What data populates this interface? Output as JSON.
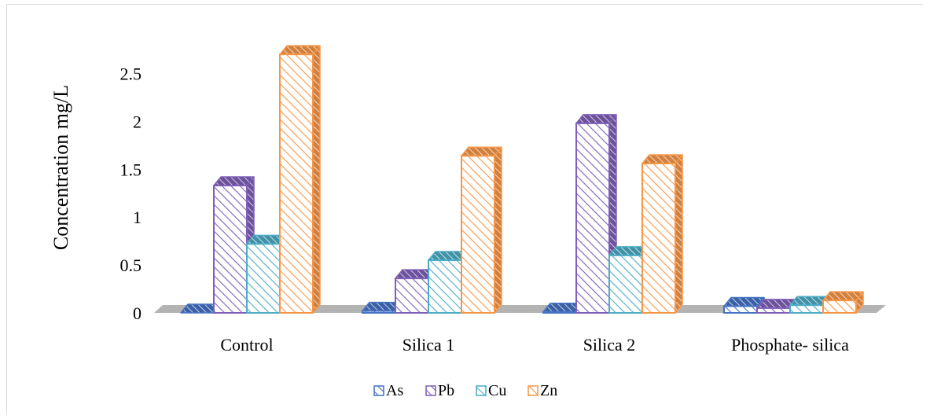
{
  "chart_data": {
    "type": "bar",
    "categories": [
      "Control",
      "Silica 1",
      "Silica 2",
      "Phosphate- silica"
    ],
    "series": [
      {
        "name": "As",
        "values": [
          0.0,
          0.02,
          0.01,
          0.07
        ],
        "color": "#4472c4"
      },
      {
        "name": "Pb",
        "values": [
          1.33,
          0.36,
          1.98,
          0.05
        ],
        "color": "#7f5fb8"
      },
      {
        "name": "Cu",
        "values": [
          0.72,
          0.55,
          0.6,
          0.08
        ],
        "color": "#4bacc6"
      },
      {
        "name": "Zn",
        "values": [
          2.7,
          1.64,
          1.56,
          0.13
        ],
        "color": "#f79646"
      }
    ],
    "yticks": [
      "0",
      "0.5",
      "1",
      "1.5",
      "2",
      "2.5"
    ],
    "ylabel": "Concentration mg/L",
    "xlabel": "",
    "title": "",
    "ylim": [
      0,
      2.8
    ],
    "grid": false,
    "legend": "bottom",
    "style": "3d-clustered-column"
  }
}
